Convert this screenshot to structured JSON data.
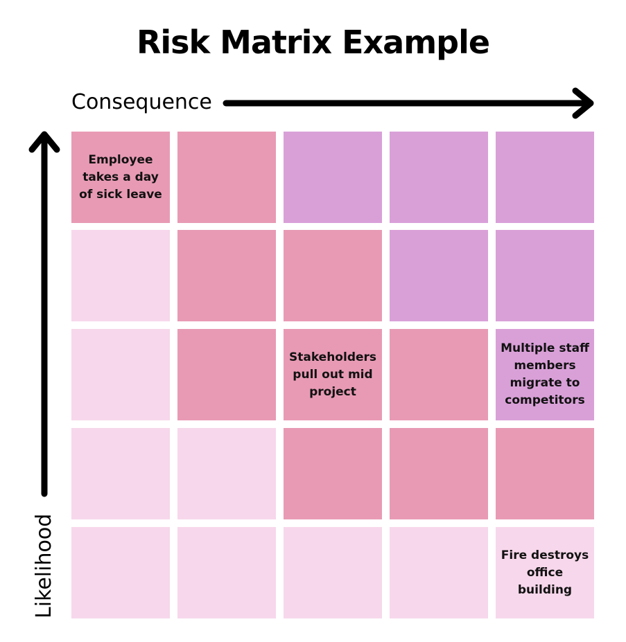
{
  "title": "Risk Matrix Example",
  "x_axis_label": "Consequence",
  "y_axis_label": "Likelihood",
  "colors": {
    "low": "#f7d7eb",
    "medium": "#e89ab4",
    "high": "#d9a0d8"
  },
  "grid": {
    "rows": [
      [
        "medium",
        "medium",
        "high",
        "high",
        "high"
      ],
      [
        "low",
        "medium",
        "medium",
        "high",
        "high"
      ],
      [
        "low",
        "medium",
        "medium",
        "medium",
        "high"
      ],
      [
        "low",
        "low",
        "medium",
        "medium",
        "medium"
      ],
      [
        "low",
        "low",
        "low",
        "low",
        "low"
      ]
    ],
    "labels": [
      [
        "Employee takes a day of sick leave",
        "",
        "",
        "",
        ""
      ],
      [
        "",
        "",
        "",
        "",
        ""
      ],
      [
        "",
        "",
        "Stakeholders pull out mid project",
        "",
        "Multiple staff members migrate to competitors"
      ],
      [
        "",
        "",
        "",
        "",
        ""
      ],
      [
        "",
        "",
        "",
        "",
        "Fire destroys office building"
      ]
    ]
  }
}
